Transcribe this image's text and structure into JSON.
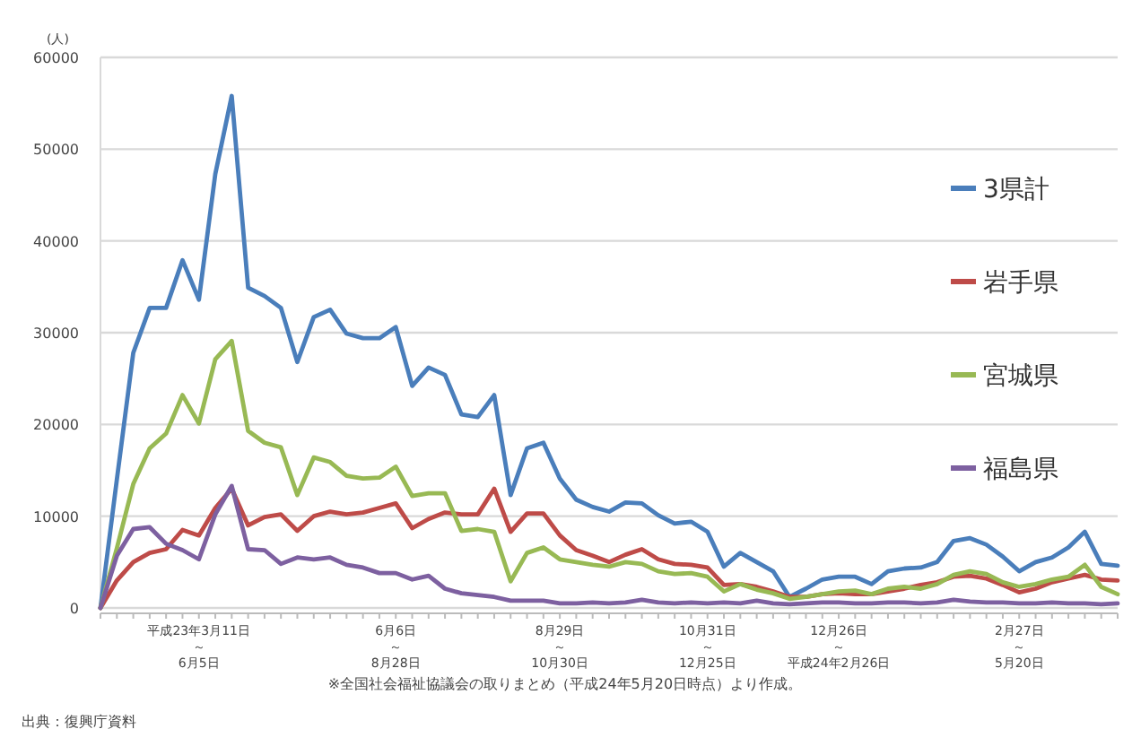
{
  "chart_data": {
    "type": "line",
    "ylabel": "(人)",
    "categories": [
      null,
      null,
      null,
      null,
      null,
      null,
      "平成23年3月11日～6月5日",
      null,
      null,
      null,
      null,
      null,
      null,
      null,
      null,
      null,
      null,
      null,
      "6月6日～8月28日",
      null,
      null,
      null,
      null,
      null,
      null,
      null,
      null,
      null,
      "8月29日～10月30日",
      null,
      null,
      null,
      null,
      null,
      null,
      null,
      null,
      "10月31日～12月25日",
      null,
      null,
      null,
      null,
      null,
      null,
      null,
      "12月26日～平成24年2月26日",
      null,
      null,
      null,
      null,
      null,
      null,
      null,
      null,
      null,
      null,
      "2月27日～5月20日",
      null,
      null,
      null,
      null,
      null,
      null
    ],
    "series": [
      {
        "name": "3県計",
        "color": "#4a7ebb",
        "values": [
          0,
          14000,
          27800,
          32700,
          32700,
          37900,
          33600,
          47300,
          55800,
          34900,
          34000,
          32700,
          26800,
          31700,
          32500,
          29900,
          29400,
          29400,
          30600,
          24200,
          26200,
          25400,
          21100,
          20800,
          23200,
          12300,
          17400,
          18000,
          14100,
          11800,
          11000,
          10500,
          11500,
          11400,
          10100,
          9200,
          9400,
          8300,
          4500,
          6000,
          5000,
          4000,
          1200,
          2100,
          3100,
          3400,
          3400,
          2600,
          4000,
          4300,
          4400,
          5000,
          7300,
          7600,
          6900,
          5600,
          4000,
          5000,
          5500,
          6600,
          8300,
          4800,
          4600
        ]
      },
      {
        "name": "岩手県",
        "color": "#be4b48",
        "values": [
          0,
          3000,
          5000,
          6000,
          6400,
          8500,
          7900,
          10900,
          13000,
          9000,
          9900,
          10200,
          8400,
          10000,
          10500,
          10200,
          10400,
          10900,
          11400,
          8700,
          9700,
          10400,
          10200,
          10200,
          13000,
          8300,
          10300,
          10300,
          7900,
          6300,
          5700,
          5000,
          5800,
          6400,
          5300,
          4800,
          4700,
          4400,
          2500,
          2600,
          2300,
          1800,
          1200,
          1200,
          1500,
          1600,
          1500,
          1500,
          1800,
          2100,
          2500,
          2800,
          3400,
          3500,
          3200,
          2500,
          1700,
          2100,
          2800,
          3200,
          3600,
          3100,
          3000
        ]
      },
      {
        "name": "宮城県",
        "color": "#98b954",
        "values": [
          0,
          6500,
          13500,
          17400,
          19000,
          23200,
          20100,
          27100,
          29100,
          19300,
          18000,
          17500,
          12300,
          16400,
          15900,
          14400,
          14100,
          14200,
          15400,
          12200,
          12500,
          12500,
          8400,
          8600,
          8300,
          2900,
          6000,
          6600,
          5300,
          5000,
          4700,
          4500,
          5000,
          4800,
          4000,
          3700,
          3800,
          3400,
          1800,
          2600,
          2000,
          1600,
          1000,
          1200,
          1500,
          1800,
          1900,
          1500,
          2100,
          2300,
          2100,
          2600,
          3600,
          4000,
          3700,
          2800,
          2300,
          2600,
          3100,
          3400,
          4700,
          2300,
          1500
        ]
      },
      {
        "name": "福島県",
        "color": "#7d60a0",
        "values": [
          0,
          5700,
          8600,
          8800,
          7000,
          6300,
          5300,
          10200,
          13300,
          6400,
          6300,
          4800,
          5500,
          5300,
          5500,
          4700,
          4400,
          3800,
          3800,
          3100,
          3500,
          2100,
          1600,
          1400,
          1200,
          800,
          800,
          800,
          500,
          500,
          600,
          500,
          600,
          900,
          600,
          500,
          600,
          500,
          600,
          500,
          800,
          500,
          400,
          500,
          600,
          600,
          500,
          500,
          600,
          600,
          500,
          600,
          900,
          700,
          600,
          600,
          500,
          500,
          600,
          500,
          500,
          400,
          500
        ]
      }
    ],
    "ylim": [
      0,
      60000
    ],
    "yticks": [
      0,
      10000,
      20000,
      30000,
      40000,
      50000,
      60000
    ],
    "grid": "y",
    "legend": "right",
    "annotations": [
      "※全国社会福祉協議会の取りまとめ（平成24年5月20日時点）より作成。",
      "出典：復興庁資料"
    ]
  }
}
